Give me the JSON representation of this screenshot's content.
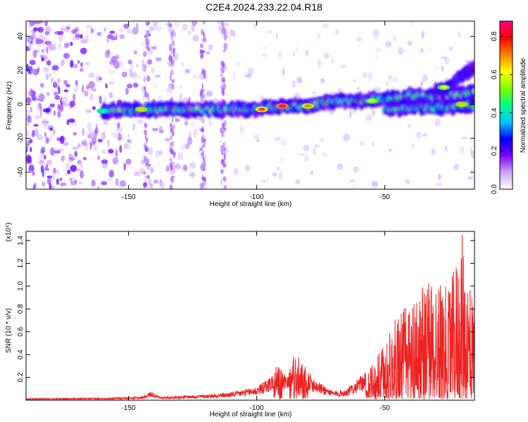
{
  "title": "C2E4.2024.233.22.04.R18",
  "chart_data": [
    {
      "type": "heatmap",
      "xlabel": "Height of straight line (km)",
      "ylabel": "Frequency (Hz)",
      "xlim": [
        -190,
        -15
      ],
      "ylim": [
        -50,
        49
      ],
      "xticks": [
        -150,
        -100,
        -50
      ],
      "yticks": [
        -40,
        -20,
        0,
        20,
        40
      ],
      "colorbar": {
        "label": "Normalized spectral amplitude",
        "range": [
          0,
          0.88
        ],
        "ticks": [
          0.0,
          0.2,
          0.4,
          0.6,
          0.8
        ],
        "colors": [
          "#ffffff",
          "#c9a6ff",
          "#8000ff",
          "#0000ff",
          "#00c8ff",
          "#00ff80",
          "#80ff00",
          "#ffff00",
          "#ff8000",
          "#ff0000",
          "#ff0080"
        ]
      },
      "ridges": [
        {
          "x": [
            -160,
            -140,
            -120,
            -100,
            -90,
            -80,
            -70,
            -60,
            -50,
            -40,
            -30,
            -20,
            -15
          ],
          "y": [
            -4,
            -3,
            -3,
            -3,
            -1,
            -1,
            2,
            2,
            3,
            5,
            5,
            6,
            7
          ],
          "peak": 0.6
        },
        {
          "x": [
            -50,
            -40,
            -30,
            -20,
            -15
          ],
          "y": [
            -3,
            -2,
            -2,
            -1,
            -1
          ],
          "peak": 0.55
        },
        {
          "x": [
            -30,
            -25,
            -20,
            -15
          ],
          "y": [
            8,
            10,
            17,
            22
          ],
          "peak": 0.3
        }
      ],
      "hotspots": [
        {
          "x": -90,
          "y": -1,
          "value": 0.88
        },
        {
          "x": -98,
          "y": -3,
          "value": 0.75
        },
        {
          "x": -80,
          "y": -1,
          "value": 0.7
        },
        {
          "x": -145,
          "y": -3,
          "value": 0.65
        },
        {
          "x": -55,
          "y": 2,
          "value": 0.6
        },
        {
          "x": -27,
          "y": 10,
          "value": 0.6
        },
        {
          "x": -20,
          "y": 0,
          "value": 0.65
        },
        {
          "x": -160,
          "y": -4,
          "value": 0.45
        }
      ]
    },
    {
      "type": "line",
      "xlabel": "Height of straight line (km)",
      "ylabel": "SNR (10 * v/v)",
      "yexponent": "(x10⁴)",
      "xlim": [
        -190,
        -15
      ],
      "ylim": [
        0,
        1.48
      ],
      "xticks": [
        -150,
        -100,
        -50
      ],
      "yticks": [
        0.2,
        0.4,
        0.6,
        0.8,
        1.0,
        1.2,
        1.4
      ],
      "color": "#ee2222",
      "envelope": {
        "x": [
          -190,
          -160,
          -145,
          -141,
          -138,
          -120,
          -110,
          -100,
          -95,
          -92,
          -88,
          -85,
          -83,
          -80,
          -75,
          -70,
          -65,
          -60,
          -55,
          -50,
          -45,
          -40,
          -35,
          -30,
          -25,
          -21,
          -20,
          -18,
          -15
        ],
        "y": [
          0.015,
          0.02,
          0.03,
          0.08,
          0.03,
          0.05,
          0.07,
          0.12,
          0.2,
          0.3,
          0.2,
          0.42,
          0.35,
          0.25,
          0.15,
          0.08,
          0.1,
          0.2,
          0.3,
          0.5,
          0.75,
          0.9,
          1.0,
          1.1,
          0.95,
          1.35,
          1.48,
          1.2,
          0.9
        ]
      }
    }
  ]
}
